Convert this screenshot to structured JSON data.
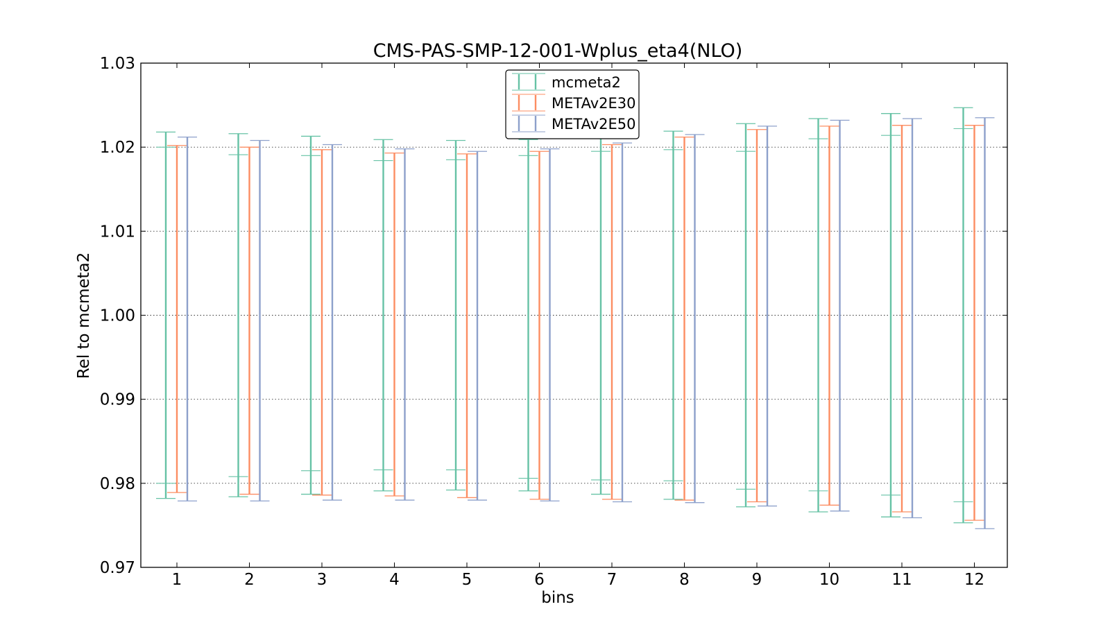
{
  "chart_data": {
    "type": "errorbar",
    "title": "CMS-PAS-SMP-12-001-Wplus_eta4(NLO)",
    "xlabel": "bins",
    "ylabel": "Rel to mcmeta2",
    "ylim": [
      0.97,
      1.03
    ],
    "yticks": [
      "0.97",
      "0.98",
      "0.99",
      "1.00",
      "1.01",
      "1.02",
      "1.03"
    ],
    "categories": [
      "1",
      "2",
      "3",
      "4",
      "5",
      "6",
      "7",
      "8",
      "9",
      "10",
      "11",
      "12"
    ],
    "grid": "horizontal dotted",
    "legend_position": "top-center",
    "series": [
      {
        "name": "mcmeta2",
        "color": "#66c2a5",
        "low": [
          0.9782,
          0.9784,
          0.9787,
          0.9791,
          0.9792,
          0.9791,
          0.9787,
          0.9781,
          0.9772,
          0.9766,
          0.976,
          0.9753
        ],
        "high": [
          1.0218,
          1.0216,
          1.0213,
          1.0209,
          1.0208,
          1.0209,
          1.0213,
          1.0219,
          1.0228,
          1.0234,
          1.024,
          1.0247
        ],
        "inner_low": [
          0.98,
          0.9808,
          0.9815,
          0.9816,
          0.9816,
          0.9806,
          0.9804,
          0.9803,
          0.9793,
          0.9791,
          0.9786,
          0.9778
        ],
        "inner_high": [
          1.02,
          1.0191,
          1.019,
          1.0184,
          1.0185,
          1.019,
          1.0195,
          1.0197,
          1.0195,
          1.021,
          1.0214,
          1.0222
        ]
      },
      {
        "name": "METAv2E30",
        "color": "#fc8d62",
        "low": [
          0.9789,
          0.9787,
          0.9786,
          0.9785,
          0.9783,
          0.9781,
          0.9781,
          0.978,
          0.9778,
          0.9774,
          0.9766,
          0.9756
        ],
        "high": [
          1.0202,
          1.02,
          1.0197,
          1.0193,
          1.0192,
          1.0195,
          1.0203,
          1.0212,
          1.0221,
          1.0225,
          1.0226,
          1.0226
        ]
      },
      {
        "name": "METAv2E50",
        "color": "#8da0cb",
        "low": [
          0.9779,
          0.9779,
          0.978,
          0.978,
          0.978,
          0.9779,
          0.9778,
          0.9777,
          0.9773,
          0.9767,
          0.9759,
          0.9746
        ],
        "high": [
          1.0212,
          1.0208,
          1.0203,
          1.0198,
          1.0195,
          1.0198,
          1.0205,
          1.0215,
          1.0225,
          1.0232,
          1.0234,
          1.0235
        ]
      }
    ]
  }
}
